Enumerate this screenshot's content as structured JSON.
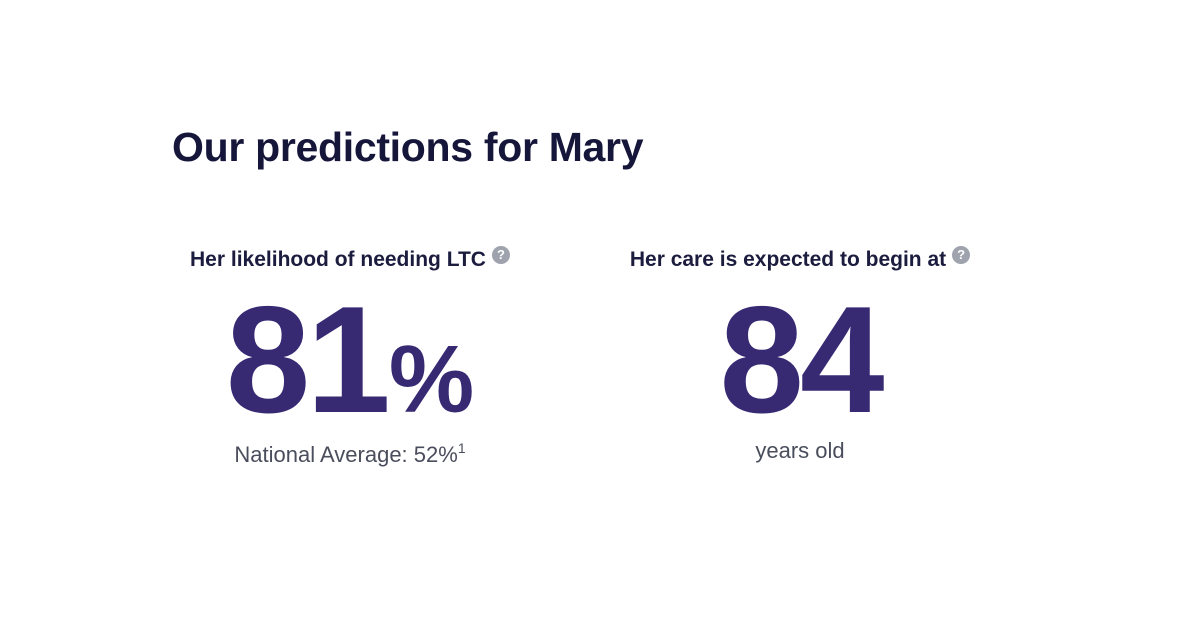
{
  "page": {
    "title": "Our predictions for Mary"
  },
  "likelihood": {
    "label": "Her likelihood of needing LTC",
    "help_icon": "?",
    "value": "81",
    "unit": "%",
    "national_average_text": "National Average: 52%",
    "footnote": "1"
  },
  "care_start": {
    "label": "Her care is expected to begin at",
    "help_icon": "?",
    "value": "84",
    "unit_text": "years old"
  },
  "colors": {
    "title": "#15163a",
    "accent": "#372a73",
    "help_icon_bg": "#9ea3ad",
    "subtext": "#4a4e5c"
  }
}
